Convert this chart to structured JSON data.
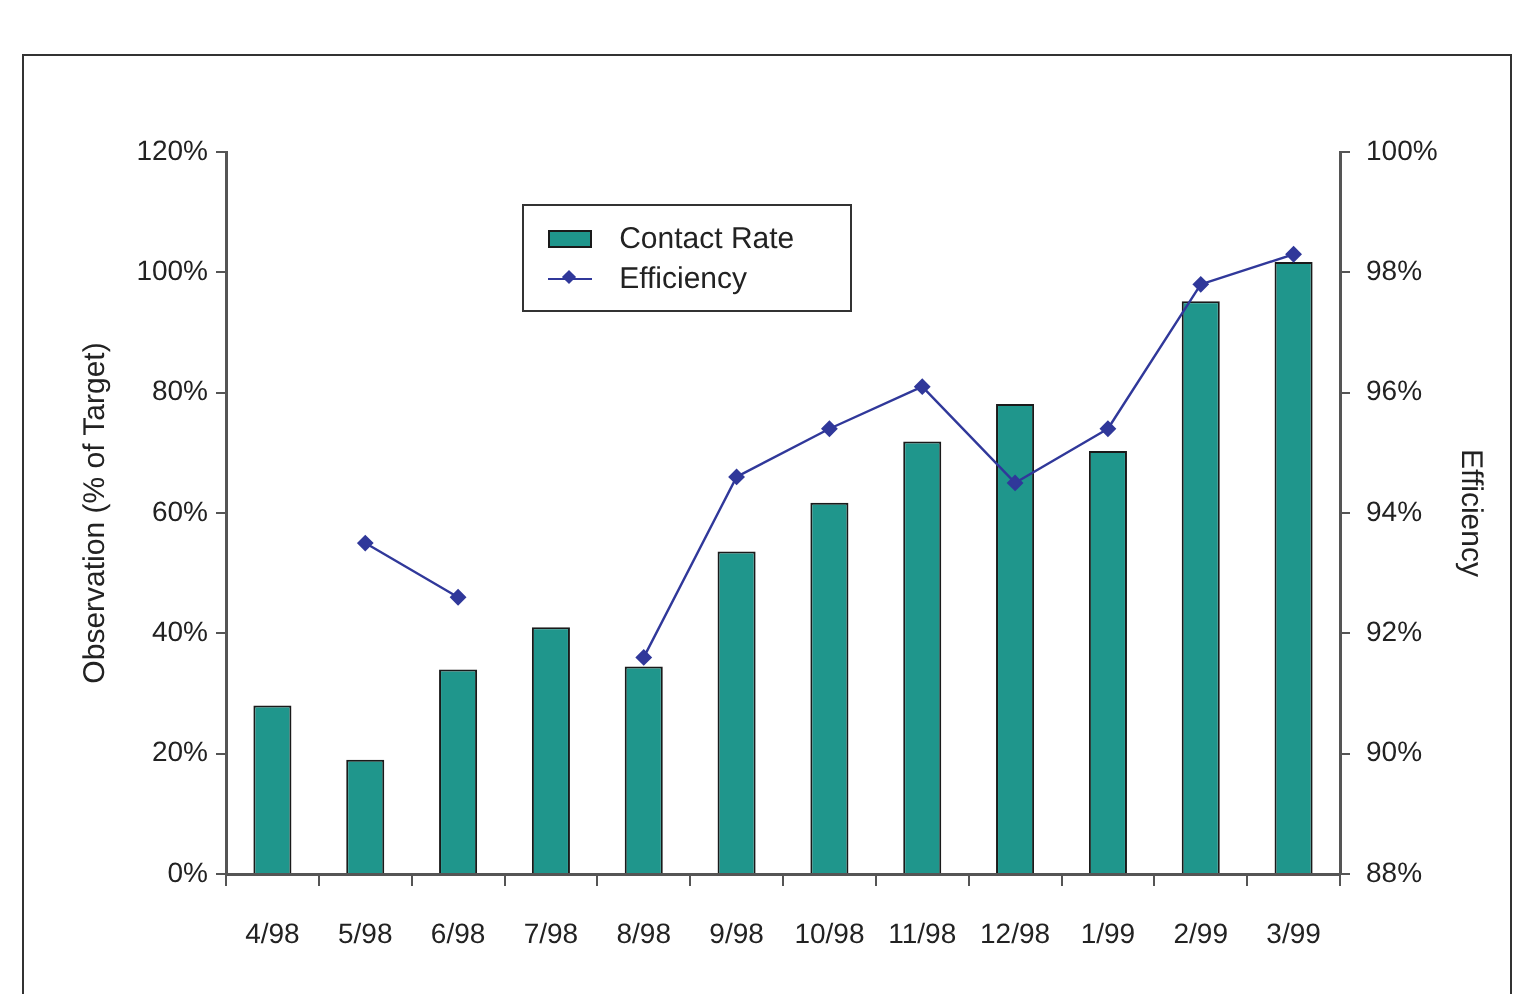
{
  "chart_data": {
    "type": "bar",
    "categories": [
      "4/98",
      "5/98",
      "6/98",
      "7/98",
      "8/98",
      "9/98",
      "10/98",
      "11/98",
      "12/98",
      "1/99",
      "2/99",
      "3/99"
    ],
    "ylabel": "Observation (% of Target)",
    "y2label": "Efficiency",
    "ylim": [
      0,
      120
    ],
    "yticks": [
      {
        "value": 0,
        "label": "0%"
      },
      {
        "value": 20,
        "label": "20%"
      },
      {
        "value": 40,
        "label": "40%"
      },
      {
        "value": 60,
        "label": "60%"
      },
      {
        "value": 80,
        "label": "80%"
      },
      {
        "value": 100,
        "label": "100%"
      },
      {
        "value": 120,
        "label": "120%"
      }
    ],
    "y2lim": [
      88,
      100
    ],
    "y2ticks": [
      {
        "value": 88,
        "label": "88%"
      },
      {
        "value": 90,
        "label": "90%"
      },
      {
        "value": 92,
        "label": "92%"
      },
      {
        "value": 94,
        "label": "94%"
      },
      {
        "value": 96,
        "label": "96%"
      },
      {
        "value": 98,
        "label": "98%"
      },
      {
        "value": 100,
        "label": "100%"
      }
    ],
    "series": [
      {
        "name": "Contact Rate",
        "color": "#1f968c",
        "values": [
          28,
          19,
          34,
          41,
          34.5,
          53.6,
          61.7,
          71.9,
          78.1,
          70.3,
          95.2,
          101.7
        ]
      },
      {
        "name": "Efficiency",
        "type": "line",
        "axis": "y2",
        "color": "#30389a",
        "values": [
          null,
          93.5,
          92.6,
          null,
          91.6,
          94.6,
          95.4,
          96.1,
          94.5,
          95.4,
          97.8,
          98.3
        ]
      }
    ],
    "marker": "diamond",
    "legend": "top left",
    "grid": false
  }
}
